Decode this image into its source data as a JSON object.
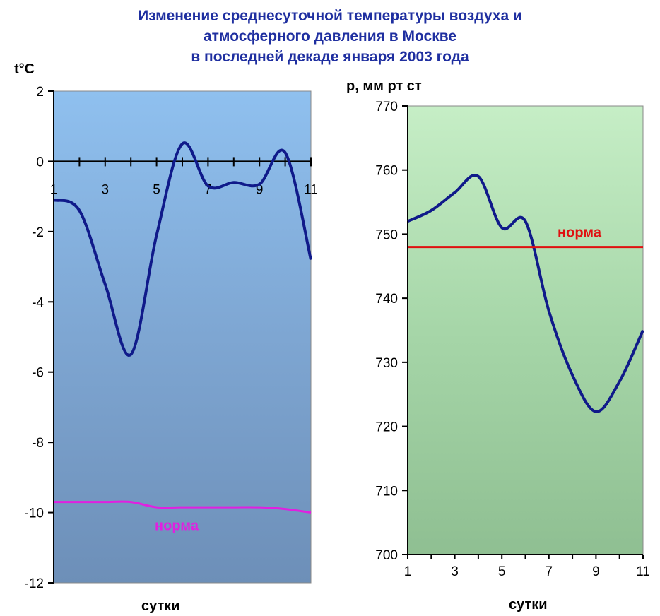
{
  "title_lines": [
    "Изменение среднесуточной температуры воздуха и",
    "атмосферного давления в Москве",
    "в последней декаде января 2003 года"
  ],
  "chart_data": [
    {
      "type": "line",
      "ylabel": "t°C",
      "xlabel": "сутки",
      "x": [
        1,
        2,
        3,
        4,
        5,
        6,
        7,
        8,
        9,
        10,
        11
      ],
      "xticks": [
        1,
        3,
        5,
        7,
        9,
        11
      ],
      "yticks": [
        2,
        0,
        -2,
        -4,
        -6,
        -8,
        -10,
        -12
      ],
      "ylim": [
        -12,
        2
      ],
      "xlim": [
        1,
        11
      ],
      "series": [
        {
          "values": [
            -1.1,
            -1.4,
            -3.5,
            -5.5,
            -2.1,
            0.5,
            -0.7,
            -0.6,
            -0.65,
            0.25,
            -2.8
          ],
          "color": "#101a8a"
        },
        {
          "name": "норма",
          "values": [
            -9.7,
            -9.7,
            -9.7,
            -9.7,
            -9.85,
            -9.85,
            -9.85,
            -9.85,
            -9.85,
            -9.9,
            -10.0
          ],
          "color": "#e020e0"
        }
      ],
      "background": "#7fa8d8"
    },
    {
      "type": "line",
      "ylabel": "р, мм рт ст",
      "xlabel": "сутки",
      "x": [
        1,
        2,
        3,
        4,
        5,
        6,
        7,
        8,
        9,
        10,
        11
      ],
      "xticks": [
        1,
        3,
        5,
        7,
        9,
        11
      ],
      "yticks": [
        770,
        760,
        750,
        740,
        730,
        720,
        710,
        700
      ],
      "ylim": [
        700,
        770
      ],
      "xlim": [
        1,
        11
      ],
      "series": [
        {
          "values": [
            752,
            753.7,
            756.5,
            759,
            751,
            752,
            738,
            728,
            722.3,
            727,
            735
          ],
          "color": "#101a8a"
        },
        {
          "name": "норма",
          "values": [
            748,
            748,
            748,
            748,
            748,
            748,
            748,
            748,
            748,
            748,
            748
          ],
          "color": "#e01010"
        }
      ],
      "background": "#a8d8a8"
    }
  ]
}
